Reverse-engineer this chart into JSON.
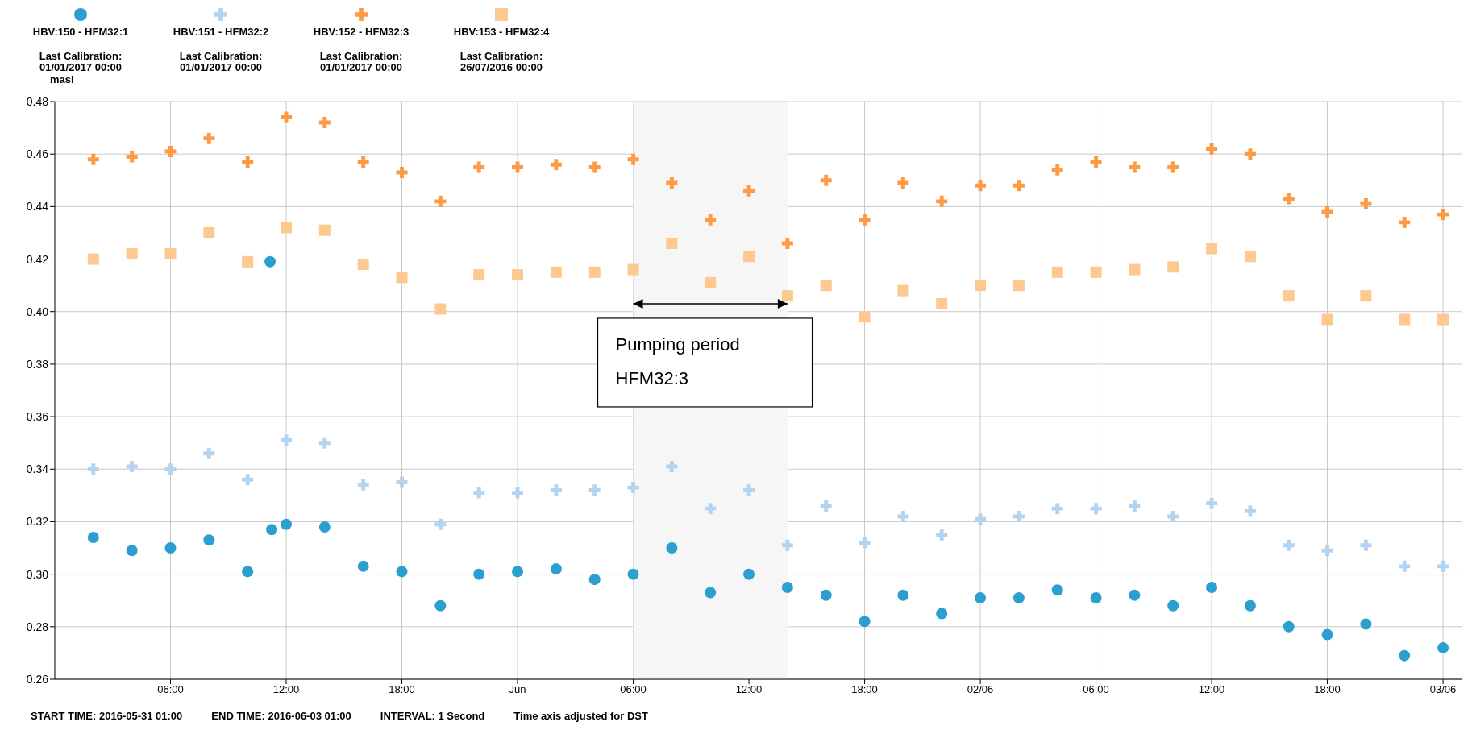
{
  "chart_data": {
    "type": "scatter",
    "ylabel": "masl",
    "legend": "top left",
    "grid": true,
    "x": [
      "2016-05-31T02:00",
      "2016-05-31T04:00",
      "2016-05-31T06:00",
      "2016-05-31T08:00",
      "2016-05-31T10:00",
      "2016-05-31T12:00",
      "2016-05-31T14:00",
      "2016-05-31T16:00",
      "2016-05-31T18:00",
      "2016-05-31T20:00",
      "2016-05-31T22:00",
      "2016-06-01T00:00",
      "2016-06-01T02:00",
      "2016-06-01T04:00",
      "2016-06-01T06:00",
      "2016-06-01T08:00",
      "2016-06-01T10:00",
      "2016-06-01T12:00",
      "2016-06-01T14:00",
      "2016-06-01T16:00",
      "2016-06-01T18:00",
      "2016-06-01T20:00",
      "2016-06-01T22:00",
      "2016-06-02T00:00",
      "2016-06-02T02:00",
      "2016-06-02T04:00",
      "2016-06-02T06:00",
      "2016-06-02T08:00",
      "2016-06-02T10:00",
      "2016-06-02T12:00",
      "2016-06-02T14:00",
      "2016-06-02T16:00",
      "2016-06-02T18:00",
      "2016-06-02T20:00",
      "2016-06-02T22:00",
      "2016-06-03T00:00"
    ],
    "series": [
      {
        "name": "HBV:150 - HFM32:1",
        "color": "#2a9fd0",
        "marker": "circle",
        "x": [
          "2016-05-31T02:00",
          "2016-05-31T04:00",
          "2016-05-31T06:00",
          "2016-05-31T08:00",
          "2016-05-31T10:00",
          "2016-05-31T11:10",
          "2016-05-31T11:15",
          "2016-05-31T12:00",
          "2016-05-31T14:00",
          "2016-05-31T16:00",
          "2016-05-31T18:00",
          "2016-05-31T20:00",
          "2016-05-31T22:00",
          "2016-06-01T00:00",
          "2016-06-01T02:00",
          "2016-06-01T04:00",
          "2016-06-01T06:00",
          "2016-06-01T08:00",
          "2016-06-01T10:00",
          "2016-06-01T12:00",
          "2016-06-01T14:00",
          "2016-06-01T16:00",
          "2016-06-01T18:00",
          "2016-06-01T20:00",
          "2016-06-01T22:00",
          "2016-06-02T00:00",
          "2016-06-02T02:00",
          "2016-06-02T04:00",
          "2016-06-02T06:00",
          "2016-06-02T08:00",
          "2016-06-02T10:00",
          "2016-06-02T12:00",
          "2016-06-02T14:00",
          "2016-06-02T16:00",
          "2016-06-02T18:00",
          "2016-06-02T20:00",
          "2016-06-02T22:00",
          "2016-06-03T00:00"
        ],
        "values": [
          0.314,
          0.309,
          0.31,
          0.313,
          0.301,
          0.419,
          0.317,
          0.319,
          0.318,
          0.303,
          0.301,
          0.288,
          0.3,
          0.301,
          0.302,
          0.298,
          0.3,
          0.31,
          0.293,
          0.3,
          0.295,
          0.292,
          0.282,
          0.292,
          0.285,
          0.291,
          0.291,
          0.294,
          0.291,
          0.292,
          0.288,
          0.295,
          0.288,
          0.28,
          0.277,
          0.281,
          0.269,
          0.272
        ]
      },
      {
        "name": "HBV:151 - HFM32:2",
        "color": "#b4d3ef",
        "marker": "cross",
        "values": [
          0.34,
          0.341,
          0.34,
          0.346,
          0.336,
          0.351,
          0.35,
          0.334,
          0.335,
          0.319,
          0.331,
          0.331,
          0.332,
          0.332,
          0.333,
          0.341,
          0.325,
          0.332,
          0.311,
          0.326,
          0.312,
          0.322,
          0.315,
          0.321,
          0.322,
          0.325,
          0.325,
          0.326,
          0.322,
          0.327,
          0.324,
          0.311,
          0.309,
          0.311,
          0.303,
          0.303
        ]
      },
      {
        "name": "HBV:152 - HFM32:3",
        "color": "#fd9a44",
        "marker": "cross",
        "values": [
          0.458,
          0.459,
          0.461,
          0.466,
          0.457,
          0.474,
          0.472,
          0.457,
          0.453,
          0.442,
          0.455,
          0.455,
          0.456,
          0.455,
          0.458,
          0.449,
          0.435,
          0.446,
          0.426,
          0.45,
          0.435,
          0.449,
          0.442,
          0.448,
          0.448,
          0.454,
          0.457,
          0.455,
          0.455,
          0.462,
          0.46,
          0.443,
          0.438,
          0.441,
          0.434,
          0.437
        ]
      },
      {
        "name": "HBV:153 - HFM32:4",
        "color": "#fdc98f",
        "marker": "square",
        "values": [
          0.42,
          0.422,
          0.422,
          0.43,
          0.419,
          0.432,
          0.431,
          0.418,
          0.413,
          0.401,
          0.414,
          0.414,
          0.415,
          0.415,
          0.416,
          0.426,
          0.411,
          0.421,
          0.406,
          0.41,
          0.398,
          0.408,
          0.403,
          0.41,
          0.41,
          0.415,
          0.415,
          0.416,
          0.417,
          0.424,
          0.421,
          0.406,
          0.397,
          0.406,
          0.397,
          0.397
        ]
      }
    ],
    "xlim": [
      "2016-05-31T00:00",
      "2016-06-03T01:00"
    ],
    "xticks": [
      {
        "value": "2016-05-31T06:00",
        "label": "06:00"
      },
      {
        "value": "2016-05-31T12:00",
        "label": "12:00"
      },
      {
        "value": "2016-05-31T18:00",
        "label": "18:00"
      },
      {
        "value": "2016-06-01T00:00",
        "label": "Jun"
      },
      {
        "value": "2016-06-01T06:00",
        "label": "06:00"
      },
      {
        "value": "2016-06-01T12:00",
        "label": "12:00"
      },
      {
        "value": "2016-06-01T18:00",
        "label": "18:00"
      },
      {
        "value": "2016-06-02T00:00",
        "label": "02/06"
      },
      {
        "value": "2016-06-02T06:00",
        "label": "06:00"
      },
      {
        "value": "2016-06-02T12:00",
        "label": "12:00"
      },
      {
        "value": "2016-06-02T18:00",
        "label": "18:00"
      },
      {
        "value": "2016-06-03T00:00",
        "label": "03/06"
      }
    ],
    "ylim": [
      0.26,
      0.48
    ],
    "yticks": [
      0.26,
      0.28,
      {
        "value": 0.3,
        "label": "0.30"
      },
      0.32,
      0.34,
      0.36,
      0.38,
      {
        "value": 0.4,
        "label": "0.40"
      },
      0.42,
      0.44,
      0.46,
      0.48
    ],
    "bands": [
      {
        "axis": "x",
        "from": "2016-06-01T06:00",
        "to": "2016-06-01T14:00",
        "label": "Pumping period\nHFM32:3",
        "color": "#f6f6f6"
      }
    ],
    "annotations": [
      "Last Calibration:\n01/01/2017 00:00",
      "Last Calibration:\n01/01/2017 00:00",
      "Last Calibration:\n01/01/2017 00:00",
      "Last Calibration:\n26/07/2016 00:00",
      "START TIME: 2016-05-31 01:00",
      "END TIME: 2016-06-03 01:00",
      "INTERVAL: 1 Second",
      "Time axis adjusted for DST"
    ]
  }
}
